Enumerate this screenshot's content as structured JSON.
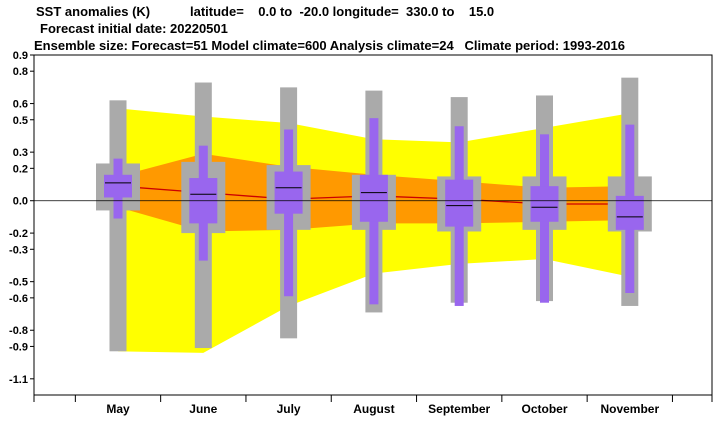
{
  "header": {
    "line1_left": "SST anomalies (K)",
    "line1_right": "latitude=    0.0 to  -20.0 longitude=  330.0 to    15.0",
    "line2": "Forecast initial date: 20220501",
    "line3": "Ensemble size: Forecast=51 Model climate=600 Analysis climate=24   Climate period: 1993-2016"
  },
  "colors": {
    "outer_band": "#ffff00",
    "inner_band": "#ff9900",
    "median_line": "#cc0000",
    "box_outer": "#aaaaaa",
    "box_inner": "#9966ee",
    "median_tick": "#000000"
  },
  "chart_data": {
    "type": "box",
    "title": "SST anomalies (K)",
    "categories": [
      "May",
      "June",
      "July",
      "August",
      "September",
      "October",
      "November"
    ],
    "ylim": [
      -1.2,
      0.9
    ],
    "yticks": [
      0.9,
      0.8,
      0.6,
      0.5,
      0.3,
      0.2,
      0.0,
      -0.2,
      -0.3,
      -0.5,
      -0.6,
      -0.8,
      -0.9,
      -1.1
    ],
    "ytick_labels": [
      "0.9",
      "0.8",
      "0.6",
      "0.5",
      "0.3",
      "0.2",
      "0.0",
      "-0.2",
      "-0.3",
      "-0.5",
      "-0.6",
      "-0.8",
      "-0.9",
      "-1.1"
    ],
    "model_climate": {
      "outer_range": [
        [
          -0.93,
          0.57
        ],
        [
          -0.94,
          0.52
        ],
        [
          -0.65,
          0.48
        ],
        [
          -0.45,
          0.38
        ],
        [
          -0.39,
          0.36
        ],
        [
          -0.36,
          0.45
        ],
        [
          -0.47,
          0.54
        ]
      ],
      "inner_range": [
        [
          -0.04,
          0.15
        ],
        [
          -0.19,
          0.29
        ],
        [
          -0.18,
          0.21
        ],
        [
          -0.14,
          0.16
        ],
        [
          -0.14,
          0.12
        ],
        [
          -0.13,
          0.08
        ],
        [
          -0.12,
          0.09
        ]
      ],
      "median": [
        0.09,
        0.05,
        0.01,
        0.03,
        0.01,
        -0.02,
        -0.02
      ]
    },
    "forecast": {
      "whisker_outer": [
        [
          -0.93,
          0.62
        ],
        [
          -0.91,
          0.73
        ],
        [
          -0.85,
          0.7
        ],
        [
          -0.69,
          0.68
        ],
        [
          -0.63,
          0.64
        ],
        [
          -0.62,
          0.65
        ],
        [
          -0.65,
          0.76
        ]
      ],
      "box_outer": [
        [
          -0.06,
          0.23
        ],
        [
          -0.2,
          0.24
        ],
        [
          -0.18,
          0.22
        ],
        [
          -0.18,
          0.16
        ],
        [
          -0.19,
          0.15
        ],
        [
          -0.18,
          0.15
        ],
        [
          -0.19,
          0.15
        ]
      ],
      "whisker_inner": [
        [
          -0.11,
          0.26
        ],
        [
          -0.37,
          0.34
        ],
        [
          -0.59,
          0.44
        ],
        [
          -0.64,
          0.51
        ],
        [
          -0.65,
          0.46
        ],
        [
          -0.63,
          0.41
        ],
        [
          -0.57,
          0.47
        ]
      ],
      "box_inner": [
        [
          0.02,
          0.16
        ],
        [
          -0.14,
          0.14
        ],
        [
          -0.08,
          0.18
        ],
        [
          -0.13,
          0.16
        ],
        [
          -0.16,
          0.13
        ],
        [
          -0.13,
          0.09
        ],
        [
          -0.18,
          0.03
        ]
      ],
      "median": [
        0.11,
        0.04,
        0.08,
        0.05,
        -0.03,
        -0.04,
        -0.1
      ]
    }
  }
}
